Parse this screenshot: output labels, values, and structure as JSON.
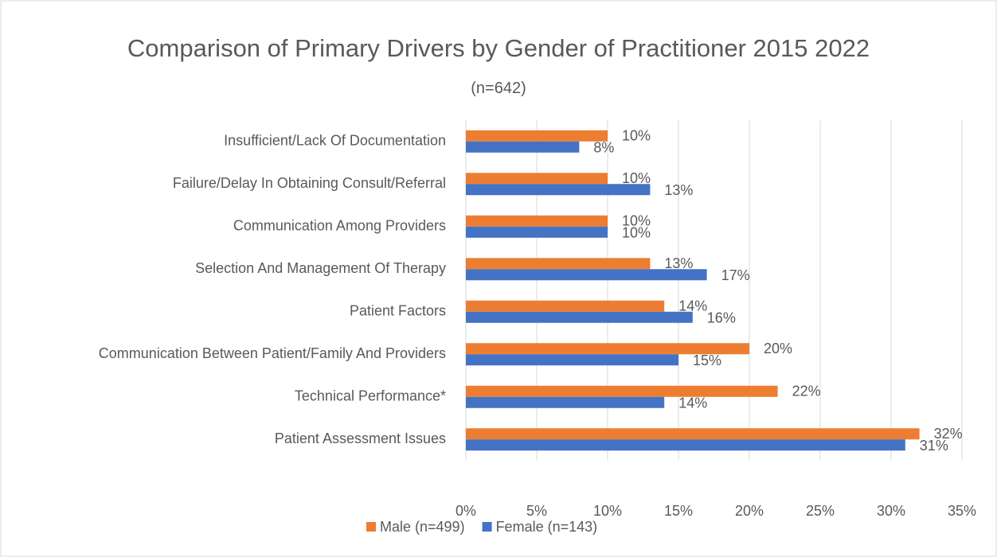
{
  "chart_data": {
    "type": "bar",
    "orientation": "horizontal",
    "title": "Comparison of Primary Drivers by Gender of Practitioner 2015 2022",
    "subtitle": "(n=642)",
    "categories": [
      "Insufficient/Lack Of Documentation",
      "Failure/Delay In Obtaining Consult/Referral",
      "Communication Among Providers",
      "Selection And Management Of Therapy",
      "Patient Factors",
      "Communication Between Patient/Family And Providers",
      "Technical Performance*",
      "Patient Assessment Issues"
    ],
    "series": [
      {
        "name": "Male (n=499)",
        "color": "#ed7d31",
        "values": [
          10,
          10,
          10,
          13,
          14,
          20,
          22,
          32
        ],
        "value_labels": [
          "10%",
          "10%",
          "10%",
          "13%",
          "14%",
          "20%",
          "22%",
          "32%"
        ]
      },
      {
        "name": "Female (n=143)",
        "color": "#4472c4",
        "values": [
          8,
          13,
          10,
          17,
          16,
          15,
          14,
          31
        ],
        "value_labels": [
          "8%",
          "13%",
          "10%",
          "17%",
          "16%",
          "15%",
          "14%",
          "31%"
        ]
      }
    ],
    "xlim": [
      0,
      35
    ],
    "xticks": [
      {
        "value": 0,
        "label": "0%"
      },
      {
        "value": 5,
        "label": "5%"
      },
      {
        "value": 10,
        "label": "10%"
      },
      {
        "value": 15,
        "label": "15%"
      },
      {
        "value": 20,
        "label": "20%"
      },
      {
        "value": 25,
        "label": "25%"
      },
      {
        "value": 30,
        "label": "30%"
      },
      {
        "value": 35,
        "label": "35%"
      }
    ],
    "grid": true,
    "legend": "bottom"
  }
}
